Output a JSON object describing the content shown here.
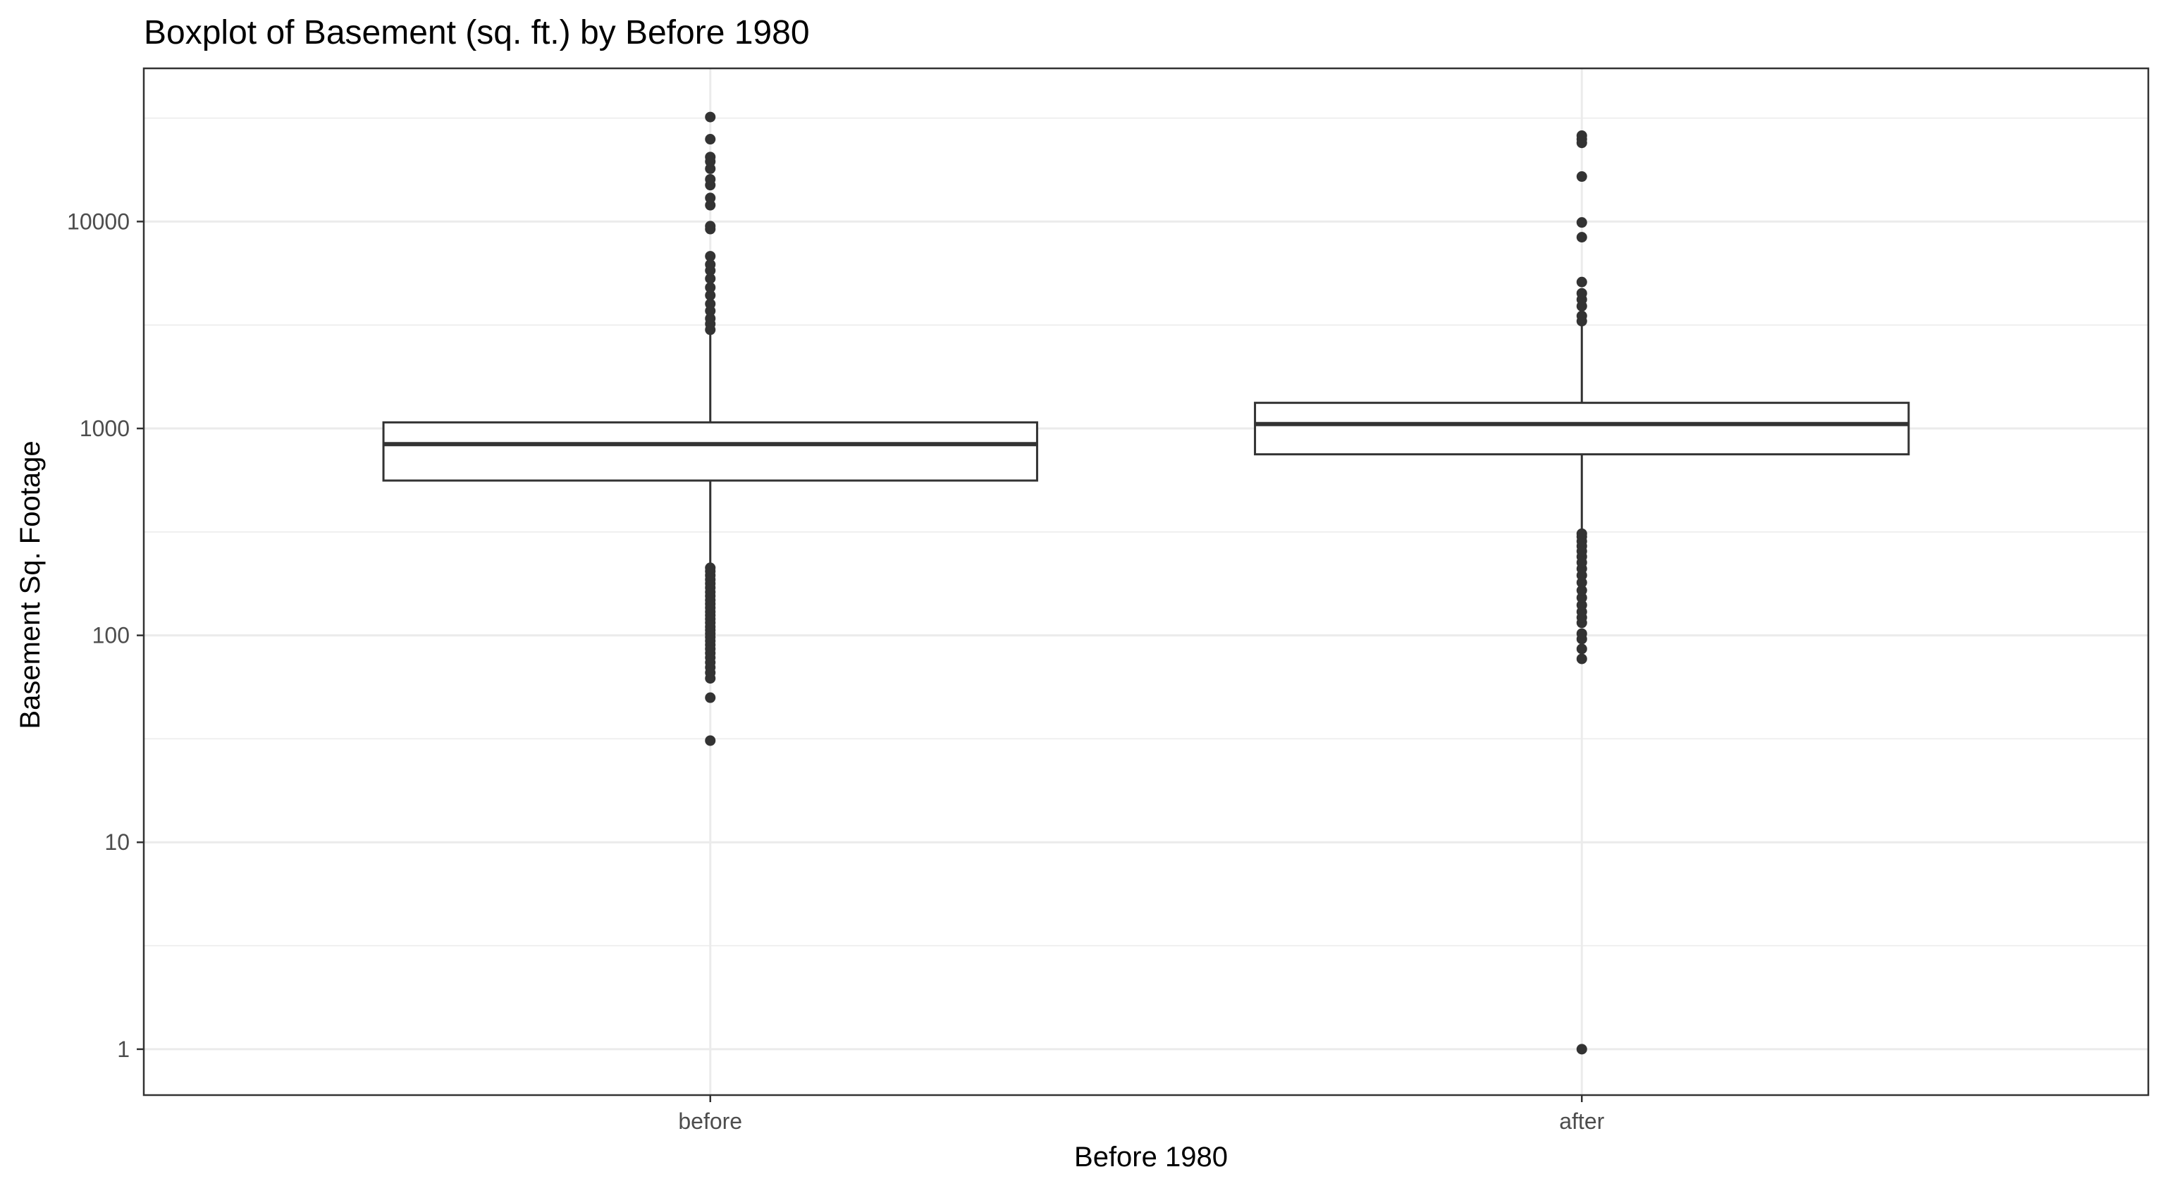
{
  "chart_data": {
    "type": "boxplot",
    "title": "Boxplot of Basement (sq. ft.) by Before 1980",
    "xlabel": "Before 1980",
    "ylabel": "Basement Sq. Footage",
    "y_scale": "log10",
    "ylim": [
      0.6,
      55000
    ],
    "y_ticks": [
      1,
      10,
      100,
      1000,
      10000
    ],
    "y_tick_labels": [
      "1",
      "10",
      "100",
      "1000",
      "10000"
    ],
    "grid": true,
    "categories": [
      "before",
      "after"
    ],
    "boxes": [
      {
        "category": "before",
        "q1": 560,
        "median": 840,
        "q3": 1070,
        "whisker_low": 215,
        "whisker_high": 2900,
        "outliers": [
          31,
          50,
          62,
          66,
          70,
          74,
          78,
          82,
          86,
          90,
          94,
          98,
          102,
          106,
          110,
          115,
          120,
          125,
          130,
          136,
          142,
          148,
          155,
          162,
          170,
          178,
          186,
          195,
          204,
          212,
          3000,
          3200,
          3400,
          3700,
          4000,
          4400,
          4800,
          5300,
          5800,
          6200,
          6800,
          9200,
          9500,
          12000,
          13000,
          15000,
          16000,
          18000,
          19500,
          20500,
          25000,
          32000
        ]
      },
      {
        "category": "after",
        "q1": 750,
        "median": 1050,
        "q3": 1330,
        "whisker_low": 320,
        "whisker_high": 3200,
        "outliers": [
          1,
          77,
          86,
          96,
          102,
          115,
          122,
          130,
          140,
          152,
          165,
          180,
          195,
          210,
          225,
          240,
          255,
          270,
          285,
          300,
          310,
          3300,
          3500,
          3900,
          4200,
          4500,
          5100,
          8400,
          9900,
          16500,
          24000,
          25000,
          26000
        ]
      }
    ]
  }
}
